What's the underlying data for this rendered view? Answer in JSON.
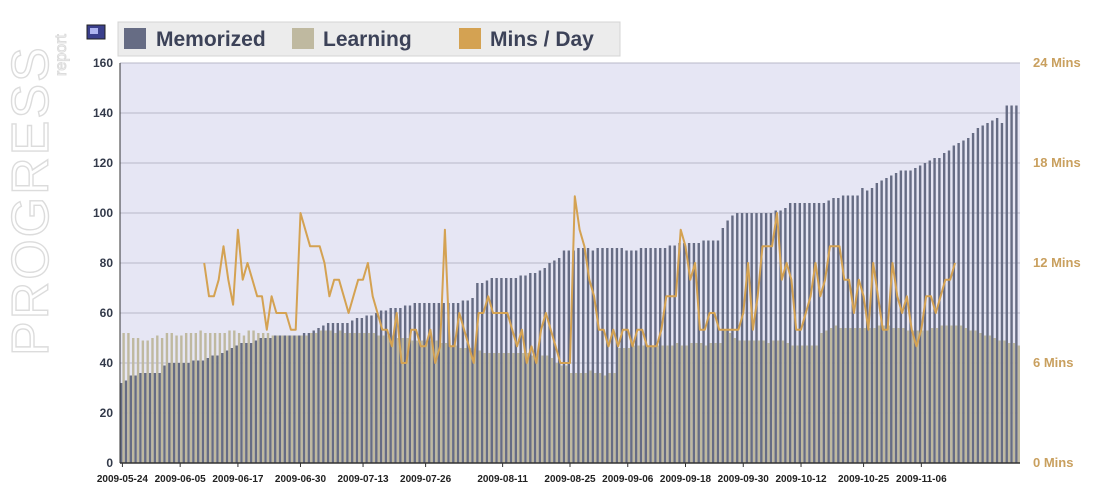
{
  "watermark": {
    "title": "PROGRESS",
    "subtitle": "report"
  },
  "colors": {
    "memorized": "#666c84",
    "learning": "#bfb9a0",
    "mins": "#d4a252",
    "plot_bg": "#e6e6f4",
    "grid": "#b8b8c8",
    "legend_bg": "#ececec"
  },
  "chart_data": {
    "type": "bar",
    "title": "",
    "legend_placement": "top-left",
    "grid": true,
    "x_start": "2009-05-24",
    "x_tick_labels": [
      "2009-05-24",
      "2009-06-05",
      "2009-06-17",
      "2009-06-30",
      "2009-07-13",
      "2009-07-26",
      "2009-08-11",
      "2009-08-25",
      "2009-09-06",
      "2009-09-18",
      "2009-09-30",
      "2009-10-12",
      "2009-10-25",
      "2009-11-06"
    ],
    "y_left": {
      "range": [
        0,
        160
      ],
      "ticks": [
        0,
        20,
        40,
        60,
        80,
        100,
        120,
        140,
        160
      ]
    },
    "y_right": {
      "range": [
        0,
        24
      ],
      "ticks": [
        "0 Mins",
        "6 Mins",
        "12 Mins",
        "18 Mins",
        "24 Mins"
      ]
    },
    "series": [
      {
        "name": "Memorized",
        "type": "bar",
        "axis": "left",
        "values": [
          32,
          33,
          35,
          35,
          36,
          36,
          36,
          36,
          36,
          39,
          40,
          40,
          40,
          40,
          40,
          41,
          41,
          41,
          42,
          43,
          43,
          44,
          45,
          46,
          47,
          48,
          48,
          48,
          49,
          50,
          50,
          50,
          51,
          51,
          51,
          51,
          51,
          51,
          52,
          52,
          53,
          54,
          55,
          56,
          56,
          56,
          56,
          56,
          57,
          58,
          58,
          59,
          59,
          60,
          61,
          61,
          62,
          62,
          62,
          63,
          63,
          64,
          64,
          64,
          64,
          64,
          64,
          64,
          64,
          64,
          64,
          65,
          65,
          66,
          72,
          72,
          73,
          74,
          74,
          74,
          74,
          74,
          74,
          75,
          75,
          76,
          76,
          77,
          78,
          80,
          81,
          82,
          85,
          85,
          85,
          86,
          86,
          86,
          85,
          86,
          86,
          86,
          86,
          86,
          86,
          85,
          85,
          85,
          86,
          86,
          86,
          86,
          86,
          86,
          87,
          87,
          88,
          88,
          88,
          88,
          88,
          89,
          89,
          89,
          89,
          94,
          97,
          99,
          100,
          100,
          100,
          100,
          100,
          100,
          100,
          100,
          101,
          101,
          102,
          104,
          104,
          104,
          104,
          104,
          104,
          104,
          104,
          105,
          106,
          106,
          107,
          107,
          107,
          107,
          110,
          109,
          110,
          112,
          113,
          114,
          115,
          116,
          117,
          117,
          117,
          118,
          119,
          120,
          121,
          122,
          122,
          124,
          125,
          127,
          128,
          129,
          130,
          132,
          134,
          135,
          136,
          137,
          138,
          136,
          143,
          143,
          143
        ]
      },
      {
        "name": "Learning",
        "type": "bar",
        "axis": "left",
        "values": [
          52,
          52,
          50,
          50,
          49,
          49,
          50,
          51,
          50,
          52,
          52,
          51,
          51,
          52,
          52,
          52,
          53,
          52,
          52,
          52,
          52,
          52,
          53,
          53,
          52,
          51,
          53,
          53,
          52,
          52,
          52,
          51,
          51,
          51,
          51,
          51,
          51,
          51,
          51,
          52,
          52,
          53,
          53,
          53,
          52,
          53,
          52,
          52,
          52,
          52,
          52,
          52,
          52,
          51,
          51,
          51,
          51,
          50,
          50,
          50,
          49,
          49,
          49,
          49,
          49,
          49,
          48,
          48,
          47,
          47,
          46,
          46,
          46,
          45,
          45,
          44,
          44,
          44,
          44,
          44,
          44,
          44,
          44,
          44,
          44,
          43,
          43,
          43,
          43,
          42,
          40,
          39,
          39,
          36,
          36,
          36,
          36,
          37,
          36,
          36,
          35,
          36,
          36,
          46,
          46,
          46,
          47,
          47,
          47,
          47,
          47,
          47,
          47,
          47,
          47,
          48,
          47,
          47,
          48,
          48,
          48,
          47,
          48,
          48,
          48,
          53,
          52,
          50,
          49,
          49,
          49,
          49,
          49,
          49,
          48,
          49,
          49,
          49,
          48,
          47,
          47,
          47,
          47,
          47,
          47,
          52,
          53,
          54,
          55,
          54,
          54,
          54,
          54,
          54,
          54,
          54,
          54,
          55,
          55,
          55,
          54,
          54,
          54,
          53,
          53,
          53,
          53,
          53,
          54,
          54,
          55,
          55,
          55,
          55,
          55,
          54,
          53,
          53,
          52,
          51,
          51,
          50,
          49,
          49,
          48,
          48,
          47,
          47,
          47
        ]
      },
      {
        "name": "Mins / Day",
        "type": "line",
        "axis": "right",
        "values": [
          [
            17,
            12
          ],
          [
            18,
            10
          ],
          [
            19,
            10
          ],
          [
            20,
            11
          ],
          [
            21,
            13
          ],
          [
            22,
            11
          ],
          [
            23,
            9.5
          ],
          [
            24,
            14
          ],
          [
            25,
            11
          ],
          [
            26,
            12
          ],
          [
            27,
            11
          ],
          [
            28,
            10
          ],
          [
            29,
            10
          ],
          [
            30,
            8
          ],
          [
            31,
            10
          ],
          [
            32,
            9
          ],
          [
            33,
            9
          ],
          [
            34,
            9
          ],
          [
            35,
            8
          ],
          [
            36,
            8
          ],
          [
            37,
            15
          ],
          [
            38,
            14
          ],
          [
            39,
            13
          ],
          [
            40,
            13
          ],
          [
            41,
            13
          ],
          [
            42,
            12
          ],
          [
            43,
            10
          ],
          [
            44,
            11
          ],
          [
            45,
            11
          ],
          [
            46,
            10
          ],
          [
            47,
            9
          ],
          [
            48,
            10
          ],
          [
            49,
            11
          ],
          [
            50,
            11
          ],
          [
            51,
            12
          ],
          [
            52,
            10
          ],
          [
            53,
            9
          ],
          [
            54,
            8
          ],
          [
            55,
            8
          ],
          [
            56,
            7
          ],
          [
            57,
            9
          ],
          [
            58,
            6
          ],
          [
            59,
            6
          ],
          [
            60,
            8
          ],
          [
            61,
            8
          ],
          [
            62,
            7
          ],
          [
            63,
            7
          ],
          [
            64,
            8
          ],
          [
            65,
            6
          ],
          [
            66,
            7
          ],
          [
            67,
            14
          ],
          [
            68,
            7
          ],
          [
            69,
            7
          ],
          [
            70,
            9
          ],
          [
            71,
            8
          ],
          [
            72,
            7
          ],
          [
            73,
            6
          ],
          [
            74,
            9
          ],
          [
            75,
            9
          ],
          [
            76,
            10
          ],
          [
            77,
            9
          ],
          [
            78,
            9
          ],
          [
            79,
            9
          ],
          [
            80,
            9
          ],
          [
            81,
            8
          ],
          [
            82,
            7
          ],
          [
            83,
            8
          ],
          [
            84,
            6
          ],
          [
            85,
            7
          ],
          [
            86,
            6
          ],
          [
            87,
            8
          ],
          [
            88,
            9
          ],
          [
            89,
            8
          ],
          [
            90,
            7
          ],
          [
            91,
            6
          ],
          [
            92,
            6
          ],
          [
            93,
            6
          ],
          [
            94,
            16
          ],
          [
            95,
            14
          ],
          [
            96,
            13
          ],
          [
            97,
            11
          ],
          [
            98,
            10
          ],
          [
            99,
            8
          ],
          [
            100,
            8
          ],
          [
            101,
            7
          ],
          [
            102,
            8
          ],
          [
            103,
            7
          ],
          [
            104,
            8
          ],
          [
            105,
            8
          ],
          [
            106,
            7
          ],
          [
            107,
            8
          ],
          [
            108,
            8
          ],
          [
            109,
            7
          ],
          [
            110,
            7
          ],
          [
            111,
            7
          ],
          [
            112,
            8
          ],
          [
            113,
            10
          ],
          [
            114,
            10
          ],
          [
            115,
            10
          ],
          [
            116,
            14
          ],
          [
            117,
            13
          ],
          [
            118,
            11
          ],
          [
            119,
            12
          ],
          [
            120,
            8
          ],
          [
            121,
            8
          ],
          [
            122,
            9
          ],
          [
            123,
            9
          ],
          [
            124,
            8
          ],
          [
            125,
            8
          ],
          [
            126,
            8
          ],
          [
            127,
            8
          ],
          [
            128,
            8
          ],
          [
            129,
            9
          ],
          [
            130,
            12
          ],
          [
            131,
            8
          ],
          [
            132,
            10
          ],
          [
            133,
            13
          ],
          [
            134,
            13
          ],
          [
            135,
            13
          ],
          [
            136,
            15
          ],
          [
            137,
            11
          ],
          [
            138,
            12
          ],
          [
            139,
            11
          ],
          [
            140,
            8
          ],
          [
            141,
            8
          ],
          [
            142,
            9
          ],
          [
            143,
            10
          ],
          [
            144,
            12
          ],
          [
            145,
            10
          ],
          [
            146,
            11
          ],
          [
            147,
            13
          ],
          [
            148,
            13
          ],
          [
            149,
            13
          ],
          [
            150,
            11
          ],
          [
            151,
            11
          ],
          [
            152,
            9
          ],
          [
            153,
            11
          ],
          [
            154,
            10
          ],
          [
            155,
            8
          ],
          [
            156,
            12
          ],
          [
            157,
            10
          ],
          [
            158,
            8
          ],
          [
            159,
            8
          ],
          [
            160,
            12
          ],
          [
            161,
            10
          ],
          [
            162,
            9
          ],
          [
            163,
            10
          ],
          [
            164,
            8
          ],
          [
            165,
            7
          ],
          [
            166,
            8
          ],
          [
            167,
            10
          ],
          [
            168,
            10
          ],
          [
            169,
            9
          ],
          [
            170,
            10
          ],
          [
            171,
            11
          ],
          [
            172,
            11
          ],
          [
            173,
            12
          ]
        ]
      }
    ]
  }
}
